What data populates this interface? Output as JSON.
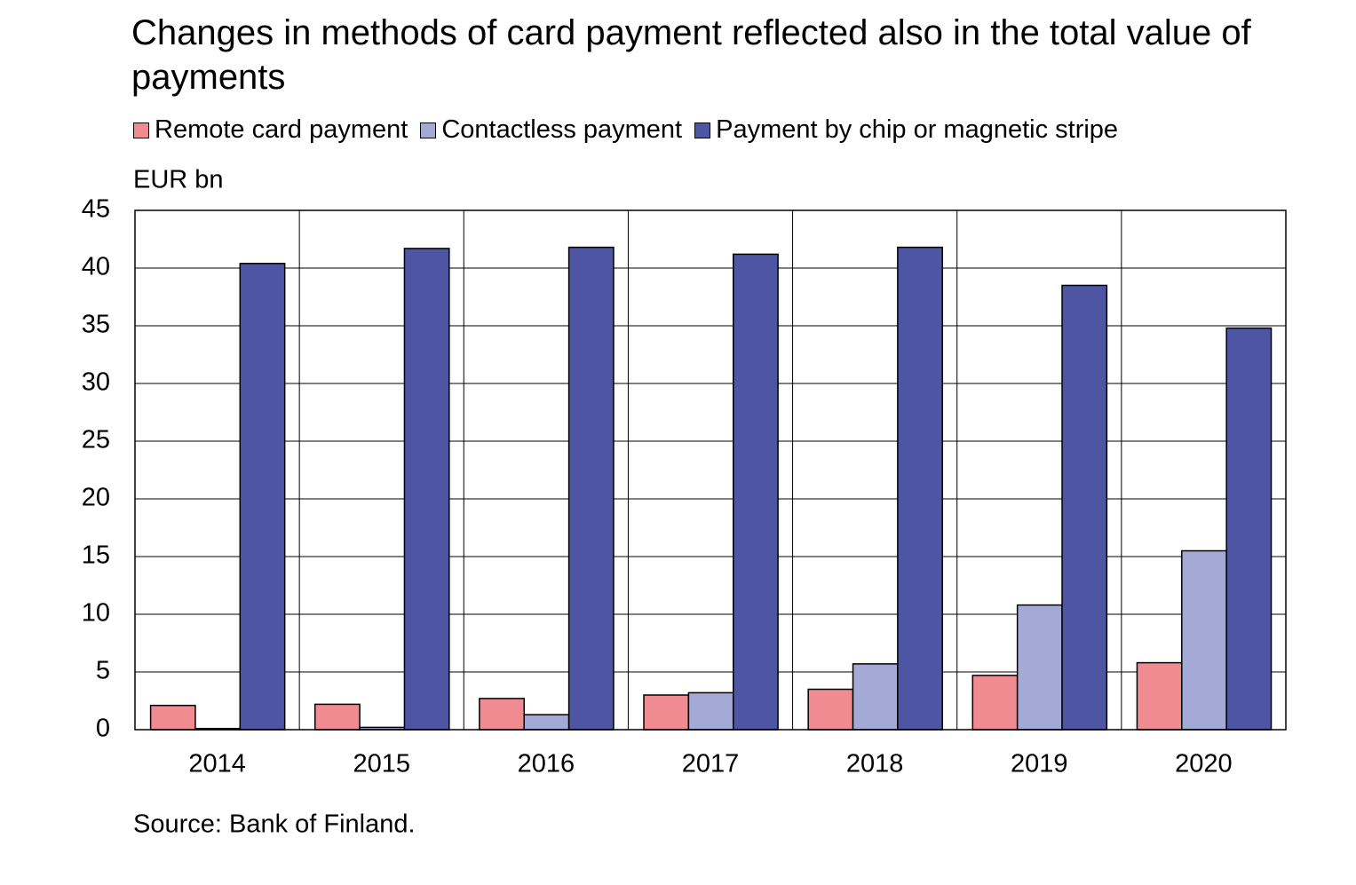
{
  "chart_data": {
    "type": "bar",
    "title": "Changes in methods of card payment reflected also in the total value of payments",
    "y_label": "EUR bn",
    "source": "Source: Bank of Finland.",
    "categories": [
      "2014",
      "2015",
      "2016",
      "2017",
      "2018",
      "2019",
      "2020"
    ],
    "series": [
      {
        "name": "Remote card payment",
        "color": "#f08c91",
        "values": [
          2.1,
          2.2,
          2.7,
          3.0,
          3.5,
          4.7,
          5.8
        ]
      },
      {
        "name": "Contactless payment",
        "color": "#a4aad6",
        "values": [
          0.1,
          0.2,
          1.3,
          3.2,
          5.7,
          10.8,
          15.5
        ]
      },
      {
        "name": "Payment by chip or magnetic stripe",
        "color": "#4e55a3",
        "values": [
          40.4,
          41.7,
          41.8,
          41.2,
          41.8,
          38.5,
          34.8
        ]
      }
    ],
    "ylim": [
      0,
      45
    ],
    "yticks": [
      0,
      5,
      10,
      15,
      20,
      25,
      30,
      35,
      40,
      45
    ],
    "grid": true
  }
}
